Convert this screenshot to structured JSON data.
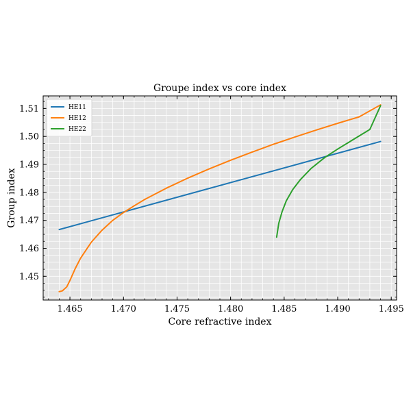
{
  "chart_data": {
    "type": "line",
    "title": "Groupe index vs core index",
    "xlabel": "Core refractive index",
    "ylabel": "Group index",
    "xlim": [
      1.4625,
      1.4955
    ],
    "ylim": [
      1.4415,
      1.5145
    ],
    "xticks": [
      "1.465",
      "1.470",
      "1.475",
      "1.480",
      "1.485",
      "1.490",
      "1.495"
    ],
    "xtick_values": [
      1.465,
      1.47,
      1.475,
      1.48,
      1.485,
      1.49,
      1.495
    ],
    "yticks": [
      "1.45",
      "1.46",
      "1.47",
      "1.48",
      "1.49",
      "1.50",
      "1.51"
    ],
    "ytick_values": [
      1.45,
      1.46,
      1.47,
      1.48,
      1.49,
      1.5,
      1.51
    ],
    "grid": true,
    "legend_position": "top-left",
    "background": "#e5e5e5",
    "series": [
      {
        "name": "HE11",
        "color": "#1f77b4",
        "x": [
          1.464,
          1.494
        ],
        "y": [
          1.4667,
          1.4982
        ]
      },
      {
        "name": "HE12",
        "color": "#ff7f0e",
        "x": [
          1.464,
          1.4643,
          1.4647,
          1.465,
          1.4655,
          1.466,
          1.467,
          1.468,
          1.469,
          1.47,
          1.471,
          1.472,
          1.474,
          1.476,
          1.478,
          1.48,
          1.482,
          1.484,
          1.486,
          1.488,
          1.49,
          1.492,
          1.494
        ],
        "y": [
          1.4445,
          1.4448,
          1.4462,
          1.4485,
          1.4528,
          1.4565,
          1.4622,
          1.4665,
          1.47,
          1.4728,
          1.4752,
          1.4775,
          1.4815,
          1.4851,
          1.4884,
          1.4915,
          1.4944,
          1.4972,
          1.4998,
          1.5023,
          1.5047,
          1.507,
          1.5113
        ]
      },
      {
        "name": "HE22",
        "color": "#2ca02c",
        "x": [
          1.4843,
          1.4845,
          1.4848,
          1.4852,
          1.4858,
          1.4865,
          1.4875,
          1.4888,
          1.49,
          1.4915,
          1.493,
          1.494
        ],
        "y": [
          1.464,
          1.469,
          1.473,
          1.477,
          1.481,
          1.4845,
          1.4885,
          1.4925,
          1.4955,
          1.499,
          1.5025,
          1.511
        ]
      }
    ]
  }
}
